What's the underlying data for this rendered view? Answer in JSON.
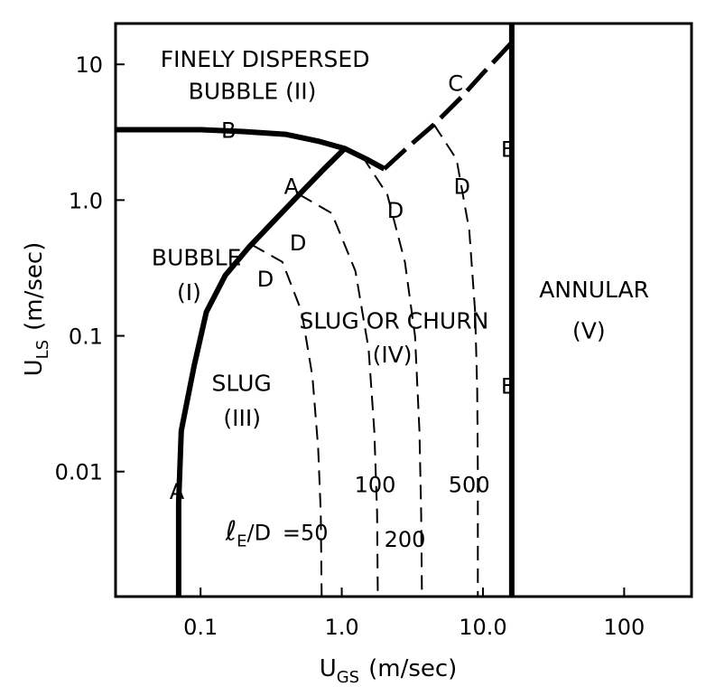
{
  "chart_data": {
    "type": "line",
    "xscale": "log",
    "yscale": "log",
    "xlim": [
      0.025,
      300
    ],
    "ylim": [
      0.0012,
      20
    ],
    "xticks": [
      {
        "value": 0.1,
        "label": "0.1"
      },
      {
        "value": 1.0,
        "label": "1.0"
      },
      {
        "value": 10.0,
        "label": "10.0"
      },
      {
        "value": 100,
        "label": "100"
      }
    ],
    "yticks": [
      {
        "value": 0.01,
        "label": "0.01"
      },
      {
        "value": 0.1,
        "label": "0.1"
      },
      {
        "value": 1.0,
        "label": "1.0"
      },
      {
        "value": 10,
        "label": "10"
      }
    ],
    "xlabel_main": "U",
    "xlabel_sub": "GS",
    "xlabel_units": "(m/sec)",
    "ylabel_main": "U",
    "ylabel_sub": "LS",
    "ylabel_units": "(m/sec)",
    "grid": false,
    "boundaries": [
      {
        "id": "A",
        "style": "solid",
        "points": [
          [
            0.07,
            0.0012
          ],
          [
            0.07,
            0.006
          ],
          [
            0.073,
            0.02
          ],
          [
            0.09,
            0.06
          ],
          [
            0.11,
            0.15
          ],
          [
            0.15,
            0.28
          ],
          [
            0.22,
            0.45
          ],
          [
            0.33,
            0.7
          ],
          [
            0.5,
            1.1
          ],
          [
            0.75,
            1.7
          ],
          [
            1.05,
            2.4
          ]
        ]
      },
      {
        "id": "B",
        "style": "solid",
        "points": [
          [
            0.025,
            3.3
          ],
          [
            0.1,
            3.3
          ],
          [
            0.2,
            3.2
          ],
          [
            0.4,
            3.05
          ],
          [
            0.7,
            2.7
          ],
          [
            1.05,
            2.4
          ],
          [
            1.5,
            2.0
          ],
          [
            2.0,
            1.7
          ]
        ]
      },
      {
        "id": "C",
        "style": "dashed",
        "points": [
          [
            2.0,
            1.7
          ],
          [
            3.0,
            2.5
          ],
          [
            4.5,
            3.6
          ],
          [
            7.0,
            5.7
          ],
          [
            10,
            8.6
          ],
          [
            13,
            11.5
          ],
          [
            16,
            14.5
          ]
        ]
      },
      {
        "id": "E",
        "style": "solid",
        "points": [
          [
            16,
            0.0012
          ],
          [
            16,
            20
          ]
        ]
      }
    ],
    "entry_length_curves": [
      {
        "value": 50,
        "points": [
          [
            0.23,
            0.47
          ],
          [
            0.38,
            0.35
          ],
          [
            0.52,
            0.15
          ],
          [
            0.62,
            0.05
          ],
          [
            0.68,
            0.015
          ],
          [
            0.71,
            0.005
          ],
          [
            0.72,
            0.0012
          ]
        ]
      },
      {
        "value": 100,
        "points": [
          [
            0.5,
            1.1
          ],
          [
            0.85,
            0.8
          ],
          [
            1.25,
            0.3
          ],
          [
            1.55,
            0.08
          ],
          [
            1.7,
            0.02
          ],
          [
            1.78,
            0.005
          ],
          [
            1.8,
            0.0012
          ]
        ]
      },
      {
        "value": 200,
        "points": [
          [
            1.4,
            2.1
          ],
          [
            2.1,
            1.1
          ],
          [
            2.8,
            0.35
          ],
          [
            3.3,
            0.1
          ],
          [
            3.55,
            0.02
          ],
          [
            3.65,
            0.005
          ],
          [
            3.7,
            0.0012
          ]
        ]
      },
      {
        "value": 500,
        "points": [
          [
            4.5,
            3.6
          ],
          [
            6.5,
            2.0
          ],
          [
            8.0,
            0.6
          ],
          [
            8.8,
            0.15
          ],
          [
            9.1,
            0.04
          ],
          [
            9.2,
            0.01
          ],
          [
            9.2,
            0.0012
          ]
        ]
      }
    ],
    "curve_labels": [
      {
        "text": "A",
        "x": 0.068,
        "y": 0.0072
      },
      {
        "text": "A",
        "x": 0.44,
        "y": 1.28
      },
      {
        "text": "B",
        "x": 0.158,
        "y": 3.3
      },
      {
        "text": "C",
        "x": 6.4,
        "y": 7.3
      },
      {
        "text": "D",
        "x": 0.49,
        "y": 0.49
      },
      {
        "text": "D",
        "x": 0.288,
        "y": 0.265
      },
      {
        "text": "D",
        "x": 2.4,
        "y": 0.85
      },
      {
        "text": "D",
        "x": 7.1,
        "y": 1.28
      },
      {
        "text": "E",
        "x": 15.0,
        "y": 2.4
      },
      {
        "text": "E",
        "x": 15.0,
        "y": 0.043
      }
    ],
    "regions": [
      {
        "id": "II",
        "lines": [
          {
            "text": "FINELY DISPERSED",
            "x": 0.052,
            "y": 11.0
          },
          {
            "text": "BUBBLE (II)",
            "x": 0.082,
            "y": 6.4
          }
        ]
      },
      {
        "id": "I",
        "lines": [
          {
            "text": "BUBBLE",
            "x": 0.045,
            "y": 0.38
          },
          {
            "text": "(I)",
            "x": 0.068,
            "y": 0.21
          }
        ]
      },
      {
        "id": "III",
        "lines": [
          {
            "text": "SLUG",
            "x": 0.12,
            "y": 0.045
          },
          {
            "text": "(III)",
            "x": 0.145,
            "y": 0.025
          }
        ]
      },
      {
        "id": "IV",
        "lines": [
          {
            "text": "SLUG OR CHURN",
            "x": 0.5,
            "y": 0.13
          },
          {
            "text": "(IV)",
            "x": 1.65,
            "y": 0.073
          }
        ]
      },
      {
        "id": "V",
        "lines": [
          {
            "text": "ANNULAR",
            "x": 25,
            "y": 0.22
          },
          {
            "text": "(V)",
            "x": 43,
            "y": 0.11
          }
        ]
      }
    ],
    "entry_length_text": [
      {
        "text": "=50",
        "x": 0.38,
        "y": 0.0036
      },
      {
        "text": "100",
        "x": 1.23,
        "y": 0.0081
      },
      {
        "text": "200",
        "x": 2.0,
        "y": 0.0032
      },
      {
        "text": "500",
        "x": 5.7,
        "y": 0.0081
      }
    ],
    "entry_length_symbol": {
      "main": "ℓ",
      "sub": "E",
      "rest": "/D",
      "x": 0.15,
      "y": 0.0036
    }
  }
}
